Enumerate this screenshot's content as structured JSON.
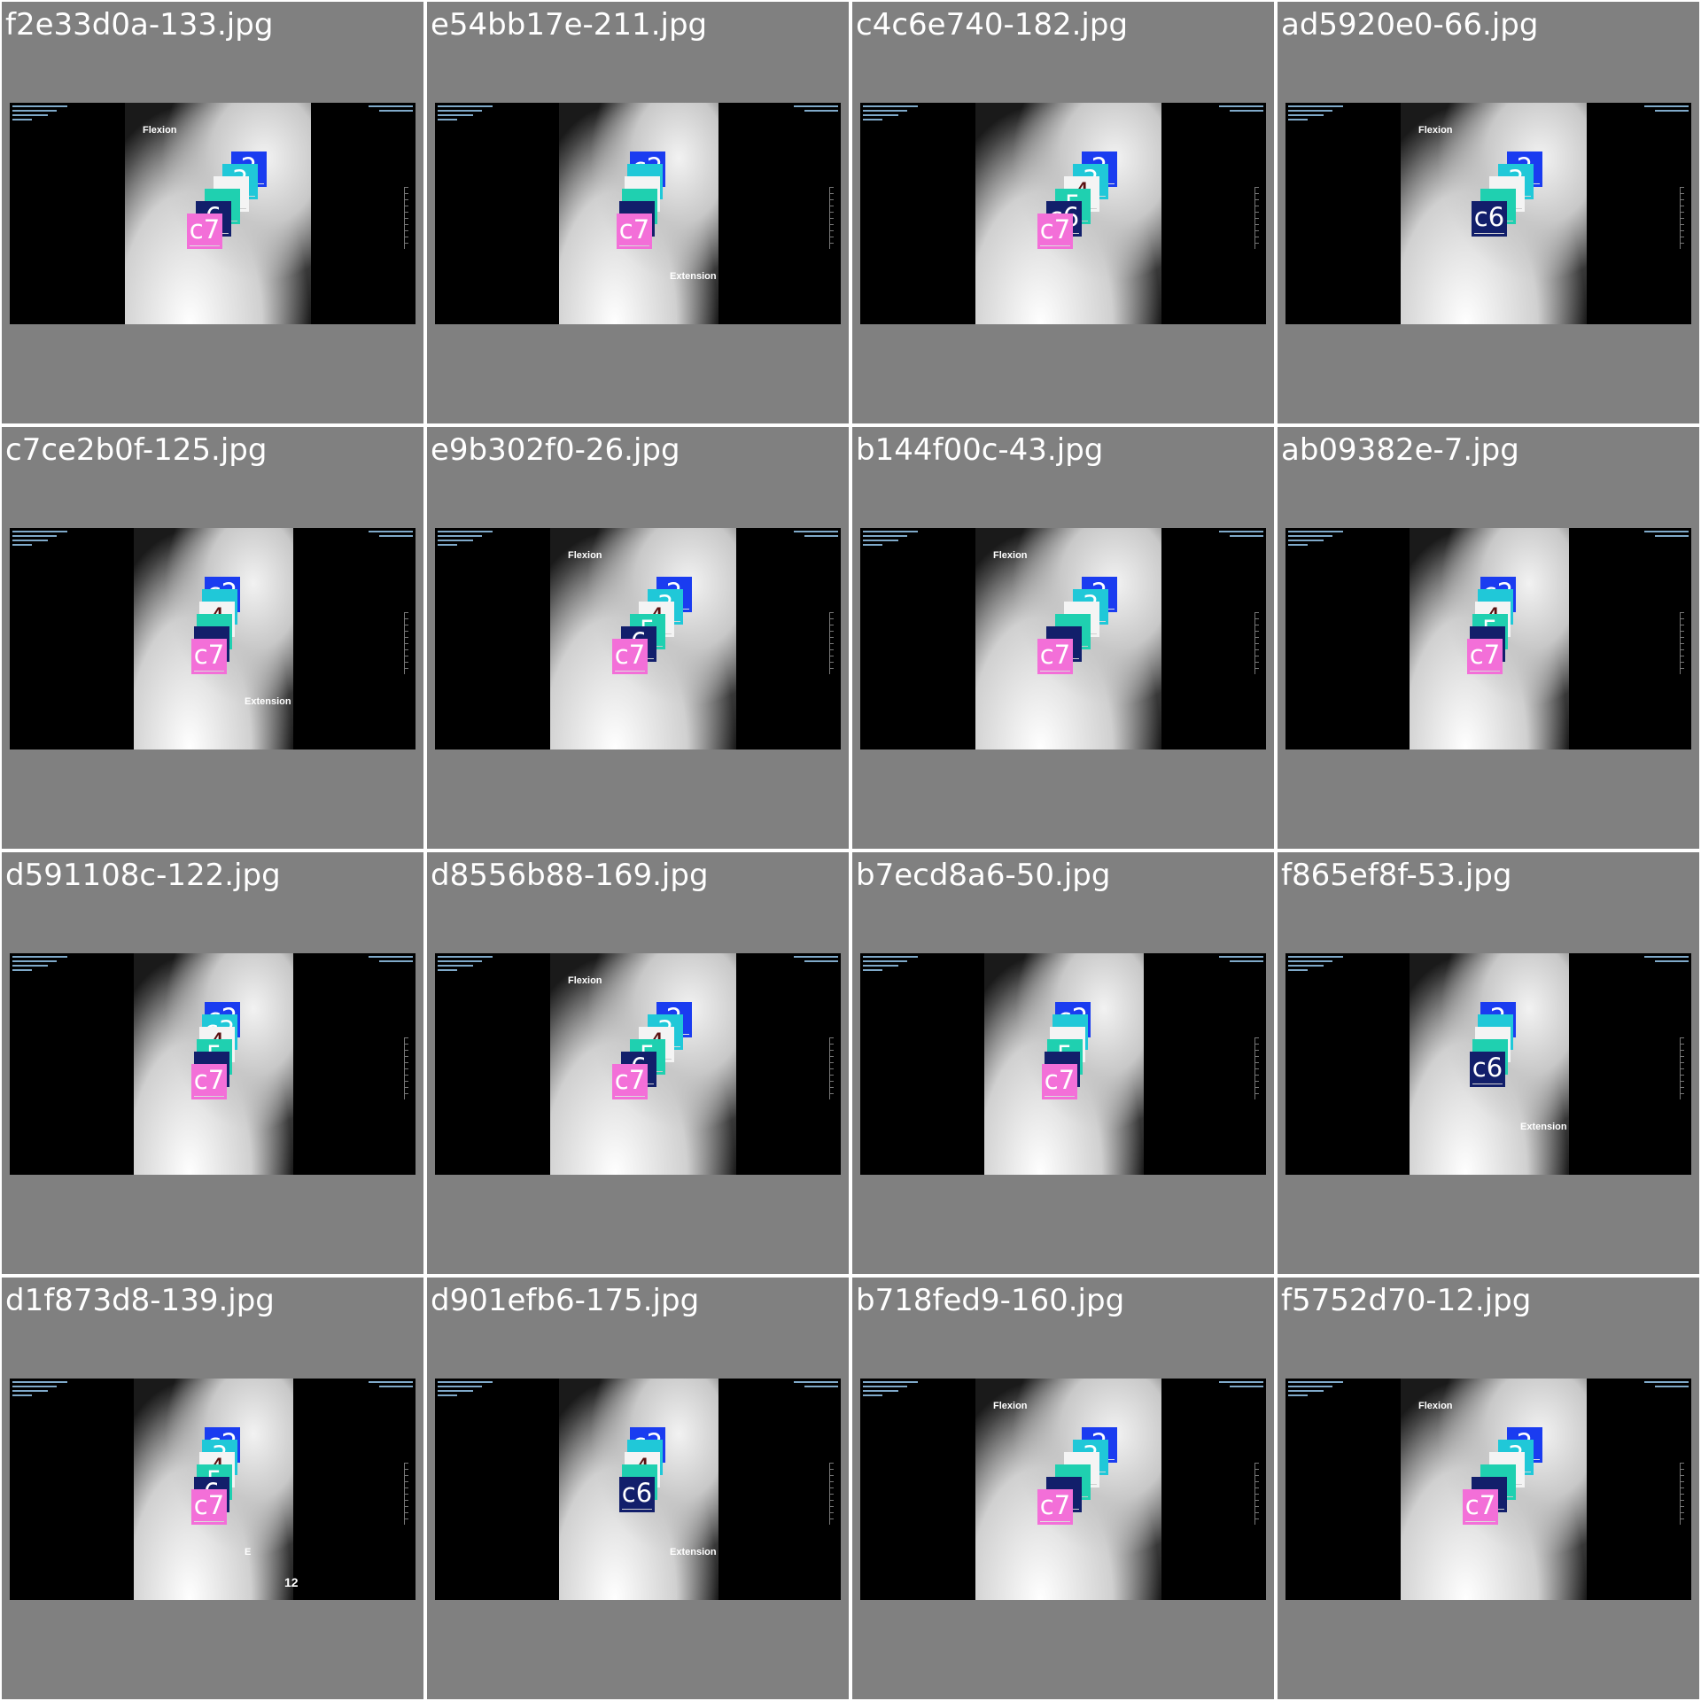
{
  "tiles": [
    {
      "title": "f2e33d0a-133.jpg",
      "view_label": "Flexion",
      "body_side": "right",
      "labels": [
        {
          "level": "c2",
          "text": "2"
        },
        {
          "level": "c3",
          "text": "3"
        },
        {
          "level": "c4",
          "text": ""
        },
        {
          "level": "c5",
          "text": ""
        },
        {
          "level": "c6",
          "text": "6"
        },
        {
          "level": "c7",
          "text": "c7"
        }
      ]
    },
    {
      "title": "e54bb17e-211.jpg",
      "view_label": "Extension",
      "body_side": "center",
      "labels": [
        {
          "level": "c2",
          "text": "c2"
        },
        {
          "level": "c3",
          "text": ""
        },
        {
          "level": "c4",
          "text": ""
        },
        {
          "level": "c5",
          "text": ""
        },
        {
          "level": "c6",
          "text": ""
        },
        {
          "level": "c7",
          "text": "c7"
        }
      ]
    },
    {
      "title": "c4c6e740-182.jpg",
      "view_label": "",
      "body_side": "right",
      "labels": [
        {
          "level": "c2",
          "text": "2"
        },
        {
          "level": "c3",
          "text": "3"
        },
        {
          "level": "c4",
          "text": "4"
        },
        {
          "level": "c5",
          "text": "5"
        },
        {
          "level": "c6",
          "text": "c6"
        },
        {
          "level": "c7",
          "text": "c7"
        }
      ]
    },
    {
      "title": "ad5920e0-66.jpg",
      "view_label": "Flexion",
      "body_side": "right",
      "labels": [
        {
          "level": "c2",
          "text": "2"
        },
        {
          "level": "c3",
          "text": "3"
        },
        {
          "level": "c4",
          "text": ""
        },
        {
          "level": "c5",
          "text": ""
        },
        {
          "level": "c6",
          "text": "c6"
        }
      ]
    },
    {
      "title": "c7ce2b0f-125.jpg",
      "view_label": "Extension",
      "body_side": "center",
      "labels": [
        {
          "level": "c2",
          "text": "c2"
        },
        {
          "level": "c3",
          "text": ""
        },
        {
          "level": "c4",
          "text": "4"
        },
        {
          "level": "c5",
          "text": ""
        },
        {
          "level": "c6",
          "text": ""
        },
        {
          "level": "c7",
          "text": "c7"
        }
      ]
    },
    {
      "title": "e9b302f0-26.jpg",
      "view_label": "Flexion",
      "body_side": "right",
      "labels": [
        {
          "level": "c2",
          "text": "2"
        },
        {
          "level": "c3",
          "text": "3"
        },
        {
          "level": "c4",
          "text": "4"
        },
        {
          "level": "c5",
          "text": "5"
        },
        {
          "level": "c6",
          "text": "6"
        },
        {
          "level": "c7",
          "text": "c7"
        }
      ]
    },
    {
      "title": "b144f00c-43.jpg",
      "view_label": "Flexion",
      "body_side": "right",
      "labels": [
        {
          "level": "c2",
          "text": "2"
        },
        {
          "level": "c3",
          "text": "3"
        },
        {
          "level": "c4",
          "text": ""
        },
        {
          "level": "c5",
          "text": ""
        },
        {
          "level": "c6",
          "text": ""
        },
        {
          "level": "c7",
          "text": "c7"
        }
      ]
    },
    {
      "title": "ab09382e-7.jpg",
      "view_label": "",
      "body_side": "center",
      "labels": [
        {
          "level": "c2",
          "text": "c2"
        },
        {
          "level": "c3",
          "text": ""
        },
        {
          "level": "c4",
          "text": "4"
        },
        {
          "level": "c5",
          "text": "5"
        },
        {
          "level": "c6",
          "text": ""
        },
        {
          "level": "c7",
          "text": "c7"
        }
      ]
    },
    {
      "title": "d591108c-122.jpg",
      "view_label": "",
      "body_side": "center",
      "labels": [
        {
          "level": "c2",
          "text": "c2"
        },
        {
          "level": "c3",
          "text": "c3"
        },
        {
          "level": "c4",
          "text": "4"
        },
        {
          "level": "c5",
          "text": "5"
        },
        {
          "level": "c6",
          "text": ""
        },
        {
          "level": "c7",
          "text": "c7"
        }
      ]
    },
    {
      "title": "d8556b88-169.jpg",
      "view_label": "Flexion",
      "body_side": "right",
      "labels": [
        {
          "level": "c2",
          "text": "2"
        },
        {
          "level": "c3",
          "text": "3"
        },
        {
          "level": "c4",
          "text": "4"
        },
        {
          "level": "c5",
          "text": "5"
        },
        {
          "level": "c6",
          "text": "6"
        },
        {
          "level": "c7",
          "text": "c7"
        }
      ]
    },
    {
      "title": "b7ecd8a6-50.jpg",
      "view_label": "",
      "body_side": "center",
      "labels": [
        {
          "level": "c2",
          "text": "c2"
        },
        {
          "level": "c3",
          "text": ""
        },
        {
          "level": "c4",
          "text": ""
        },
        {
          "level": "c5",
          "text": "5"
        },
        {
          "level": "c6",
          "text": ""
        },
        {
          "level": "c7",
          "text": "c7"
        }
      ]
    },
    {
      "title": "f865ef8f-53.jpg",
      "view_label": "Extension",
      "body_side": "center",
      "labels": [
        {
          "level": "c2",
          "text": "2"
        },
        {
          "level": "c3",
          "text": ""
        },
        {
          "level": "c4",
          "text": ""
        },
        {
          "level": "c5",
          "text": ""
        },
        {
          "level": "c6",
          "text": "c6"
        }
      ]
    },
    {
      "title": "d1f873d8-139.jpg",
      "view_label": "E",
      "body_side": "center",
      "extra_text": "12",
      "labels": [
        {
          "level": "c2",
          "text": "c2"
        },
        {
          "level": "c3",
          "text": "3"
        },
        {
          "level": "c4",
          "text": "4"
        },
        {
          "level": "c5",
          "text": "5"
        },
        {
          "level": "c6",
          "text": "6"
        },
        {
          "level": "c7",
          "text": "c7"
        }
      ]
    },
    {
      "title": "d901efb6-175.jpg",
      "view_label": "Extension",
      "body_side": "center",
      "labels": [
        {
          "level": "c2",
          "text": "c2"
        },
        {
          "level": "c3",
          "text": ""
        },
        {
          "level": "c4",
          "text": "4"
        },
        {
          "level": "c5",
          "text": ""
        },
        {
          "level": "c6",
          "text": "c6"
        }
      ]
    },
    {
      "title": "b718fed9-160.jpg",
      "view_label": "Flexion",
      "body_side": "right",
      "labels": [
        {
          "level": "c2",
          "text": "2"
        },
        {
          "level": "c3",
          "text": "3"
        },
        {
          "level": "c4",
          "text": ""
        },
        {
          "level": "c5",
          "text": ""
        },
        {
          "level": "c6",
          "text": ""
        },
        {
          "level": "c7",
          "text": "c7"
        }
      ]
    },
    {
      "title": "f5752d70-12.jpg",
      "view_label": "Flexion",
      "body_side": "right",
      "labels": [
        {
          "level": "c2",
          "text": "2"
        },
        {
          "level": "c3",
          "text": "3"
        },
        {
          "level": "c4",
          "text": ""
        },
        {
          "level": "c5",
          "text": ""
        },
        {
          "level": "c6",
          "text": ""
        },
        {
          "level": "c7",
          "text": "c7"
        }
      ]
    }
  ],
  "level_colors": {
    "c2": "#1a3cf0",
    "c3": "#20c8d8",
    "c4": "#f4f4f4",
    "c5": "#1fd0b0",
    "c6": "#121f6b",
    "c7": "#f36fd8"
  },
  "colors": {
    "tile_background": "#808080",
    "xray_background": "#000000",
    "title_text": "#ffffff"
  }
}
